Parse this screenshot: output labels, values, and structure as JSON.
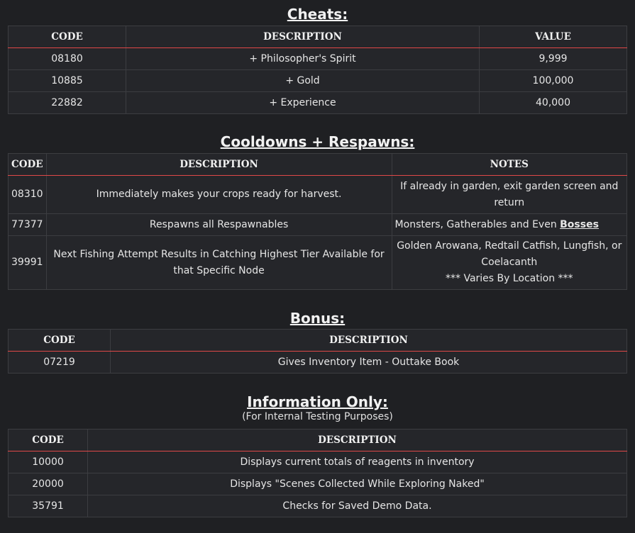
{
  "cheats": {
    "title": "Cheats:",
    "headers": [
      "CODE",
      "DESCRIPTION",
      "VALUE"
    ],
    "rows": [
      [
        "08180",
        "+ Philosopher's Spirit",
        "9,999"
      ],
      [
        "10885",
        "+ Gold",
        "100,000"
      ],
      [
        "22882",
        "+ Experience",
        "40,000"
      ]
    ]
  },
  "cooldowns": {
    "title": "Cooldowns + Respawns:",
    "headers": [
      "CODE",
      "DESCRIPTION",
      "NOTES"
    ],
    "rows": [
      {
        "code": "08310",
        "description": "Immediately makes your crops ready for harvest.",
        "notes": "If already in garden, exit garden screen and return"
      },
      {
        "code": "77377",
        "description": "Respawns all Respawnables",
        "notes": "Monsters, Gatherables and Even ",
        "notes_bold": "Bosses"
      },
      {
        "code": "39991",
        "description": "Next Fishing Attempt Results in Catching Highest Tier Available for that Specific Node",
        "notes": "Golden Arowana, Redtail Catfish, Lungfish, or Coelacanth",
        "notes_extra": "*** Varies By Location ***"
      }
    ]
  },
  "bonus": {
    "title": "Bonus:",
    "headers": [
      "CODE",
      "DESCRIPTION"
    ],
    "rows": [
      [
        "07219",
        "Gives Inventory Item - Outtake Book"
      ]
    ]
  },
  "info": {
    "title": "Information Only:",
    "subtitle": "(For Internal Testing Purposes)",
    "headers": [
      "CODE",
      "DESCRIPTION"
    ],
    "rows": [
      [
        "10000",
        "Displays current totals of reagents in inventory"
      ],
      [
        "20000",
        "Displays \"Scenes Collected While Exploring Naked\""
      ],
      [
        "35791",
        "Checks for Saved Demo Data."
      ]
    ]
  }
}
